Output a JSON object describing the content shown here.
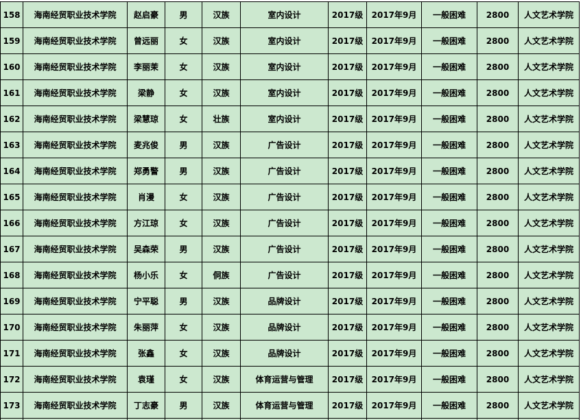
{
  "sheet": {
    "background_color": "#cce8cf",
    "rows": [
      {
        "no": "158",
        "school": "海南经贸职业技术学院",
        "name": "赵启豪",
        "gender": "男",
        "ethnicity": "汉族",
        "major": "室内设计",
        "grade": "2017级",
        "enroll": "2017年9月",
        "level": "一般困难",
        "amount": "2800",
        "college": "人文艺术学院"
      },
      {
        "no": "159",
        "school": "海南经贸职业技术学院",
        "name": "曾远丽",
        "gender": "女",
        "ethnicity": "汉族",
        "major": "室内设计",
        "grade": "2017级",
        "enroll": "2017年9月",
        "level": "一般困难",
        "amount": "2800",
        "college": "人文艺术学院"
      },
      {
        "no": "160",
        "school": "海南经贸职业技术学院",
        "name": "李丽茉",
        "gender": "女",
        "ethnicity": "汉族",
        "major": "室内设计",
        "grade": "2017级",
        "enroll": "2017年9月",
        "level": "一般困难",
        "amount": "2800",
        "college": "人文艺术学院"
      },
      {
        "no": "161",
        "school": "海南经贸职业技术学院",
        "name": "梁静",
        "gender": "女",
        "ethnicity": "汉族",
        "major": "室内设计",
        "grade": "2017级",
        "enroll": "2017年9月",
        "level": "一般困难",
        "amount": "2800",
        "college": "人文艺术学院"
      },
      {
        "no": "162",
        "school": "海南经贸职业技术学院",
        "name": "梁慧琼",
        "gender": "女",
        "ethnicity": "壮族",
        "major": "室内设计",
        "grade": "2017级",
        "enroll": "2017年9月",
        "level": "一般困难",
        "amount": "2800",
        "college": "人文艺术学院"
      },
      {
        "no": "163",
        "school": "海南经贸职业技术学院",
        "name": "麦兆俊",
        "gender": "男",
        "ethnicity": "汉族",
        "major": "广告设计",
        "grade": "2017级",
        "enroll": "2017年9月",
        "level": "一般困难",
        "amount": "2800",
        "college": "人文艺术学院"
      },
      {
        "no": "164",
        "school": "海南经贸职业技术学院",
        "name": "郑勇警",
        "gender": "男",
        "ethnicity": "汉族",
        "major": "广告设计",
        "grade": "2017级",
        "enroll": "2017年9月",
        "level": "一般困难",
        "amount": "2800",
        "college": "人文艺术学院"
      },
      {
        "no": "165",
        "school": "海南经贸职业技术学院",
        "name": "肖漫",
        "gender": "女",
        "ethnicity": "汉族",
        "major": "广告设计",
        "grade": "2017级",
        "enroll": "2017年9月",
        "level": "一般困难",
        "amount": "2800",
        "college": "人文艺术学院"
      },
      {
        "no": "166",
        "school": "海南经贸职业技术学院",
        "name": "方江琼",
        "gender": "女",
        "ethnicity": "汉族",
        "major": "广告设计",
        "grade": "2017级",
        "enroll": "2017年9月",
        "level": "一般困难",
        "amount": "2800",
        "college": "人文艺术学院"
      },
      {
        "no": "167",
        "school": "海南经贸职业技术学院",
        "name": "吴森荣",
        "gender": "男",
        "ethnicity": "汉族",
        "major": "广告设计",
        "grade": "2017级",
        "enroll": "2017年9月",
        "level": "一般困难",
        "amount": "2800",
        "college": "人文艺术学院"
      },
      {
        "no": "168",
        "school": "海南经贸职业技术学院",
        "name": "杨小乐",
        "gender": "女",
        "ethnicity": "侗族",
        "major": "广告设计",
        "grade": "2017级",
        "enroll": "2017年9月",
        "level": "一般困难",
        "amount": "2800",
        "college": "人文艺术学院"
      },
      {
        "no": "169",
        "school": "海南经贸职业技术学院",
        "name": "宁平聪",
        "gender": "男",
        "ethnicity": "汉族",
        "major": "品牌设计",
        "grade": "2017级",
        "enroll": "2017年9月",
        "level": "一般困难",
        "amount": "2800",
        "college": "人文艺术学院"
      },
      {
        "no": "170",
        "school": "海南经贸职业技术学院",
        "name": "朱丽萍",
        "gender": "女",
        "ethnicity": "汉族",
        "major": "品牌设计",
        "grade": "2017级",
        "enroll": "2017年9月",
        "level": "一般困难",
        "amount": "2800",
        "college": "人文艺术学院"
      },
      {
        "no": "171",
        "school": "海南经贸职业技术学院",
        "name": "张鑫",
        "gender": "女",
        "ethnicity": "汉族",
        "major": "品牌设计",
        "grade": "2017级",
        "enroll": "2017年9月",
        "level": "一般困难",
        "amount": "2800",
        "college": "人文艺术学院"
      },
      {
        "no": "172",
        "school": "海南经贸职业技术学院",
        "name": "袁瑾",
        "gender": "女",
        "ethnicity": "汉族",
        "major": "体育运营与管理",
        "grade": "2017级",
        "enroll": "2017年9月",
        "level": "一般困难",
        "amount": "2800",
        "college": "人文艺术学院"
      },
      {
        "no": "173",
        "school": "海南经贸职业技术学院",
        "name": "丁志豪",
        "gender": "男",
        "ethnicity": "汉族",
        "major": "体育运营与管理",
        "grade": "2017级",
        "enroll": "2017年9月",
        "level": "一般困难",
        "amount": "2800",
        "college": "人文艺术学院"
      }
    ]
  }
}
